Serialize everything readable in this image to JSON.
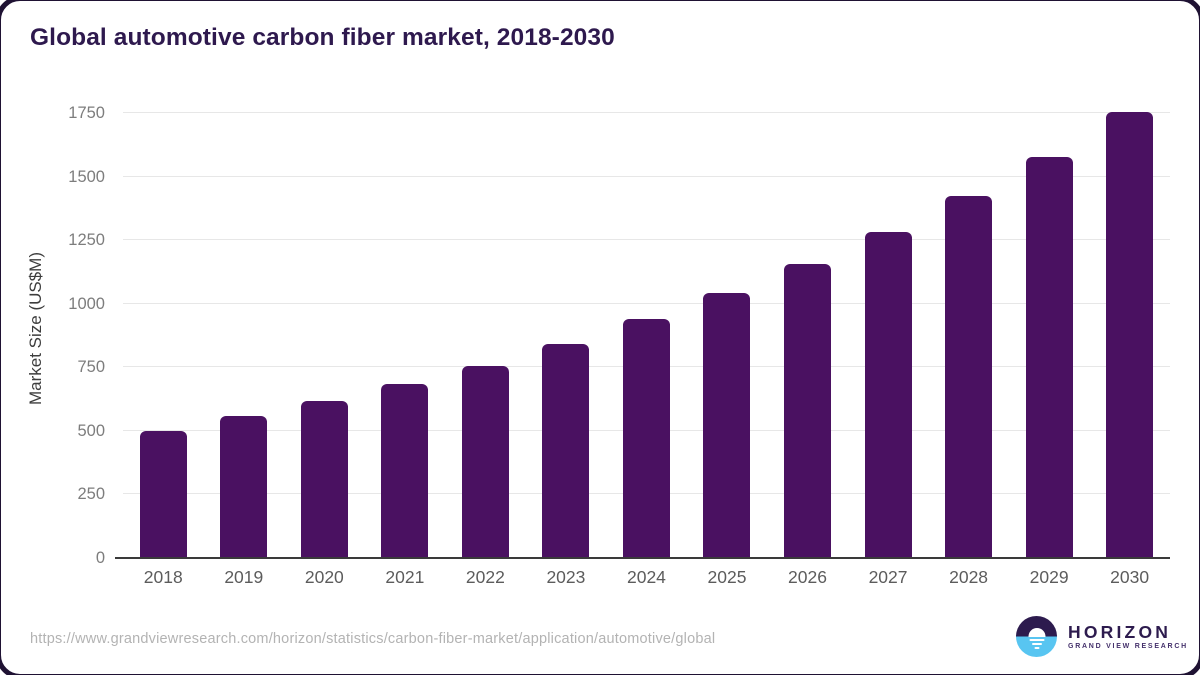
{
  "title": "Global automotive carbon fiber market, 2018-2030",
  "chart_data": {
    "type": "bar",
    "title": "Global automotive carbon fiber market, 2018-2030",
    "categories": [
      "2018",
      "2019",
      "2020",
      "2021",
      "2022",
      "2023",
      "2024",
      "2025",
      "2026",
      "2027",
      "2028",
      "2029",
      "2030"
    ],
    "values": [
      500,
      559,
      618,
      683,
      757,
      843,
      939,
      1042,
      1155,
      1283,
      1423,
      1577,
      1754
    ],
    "xlabel": "",
    "ylabel": "Market Size (US$M)",
    "ylim": [
      0,
      1750
    ],
    "yticks": [
      0,
      250,
      500,
      750,
      1000,
      1250,
      1500,
      1750
    ],
    "grid": true,
    "legend": "none",
    "bar_color": "#4a1161"
  },
  "footer": {
    "source_url": "https://www.grandviewresearch.com/horizon/statistics/carbon-fiber-market/application/automotive/global",
    "logo_name": "HORIZON",
    "logo_subtitle": "GRAND VIEW RESEARCH"
  },
  "colors": {
    "bar": "#4a1161",
    "title_text": "#2e194e",
    "axis_text": "#7d7d7d",
    "gridline": "#e7e7e7",
    "baseline": "#3a3a3a",
    "logo_purple": "#2d1b4e",
    "logo_blue": "#58c5f1",
    "url_text": "#b3b3b3"
  }
}
